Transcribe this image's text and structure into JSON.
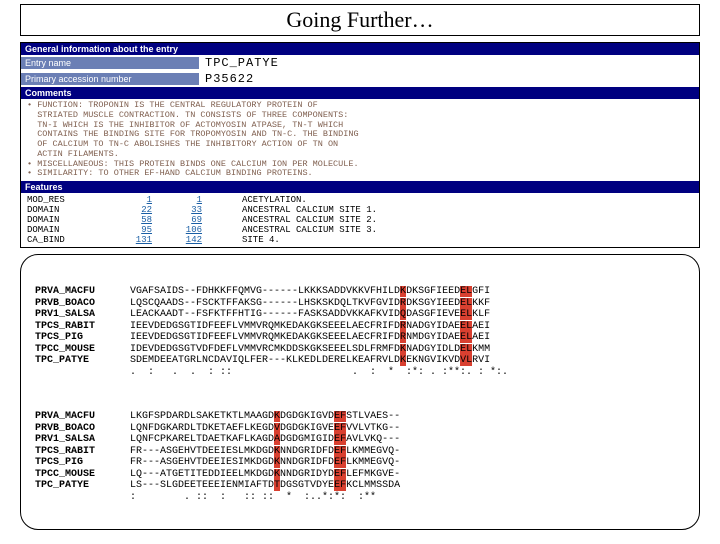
{
  "title": "Going Further…",
  "db": {
    "general_header": "General information about the entry",
    "entry_label": "Entry name",
    "entry_value": "TPC_PATYE",
    "acc_label": "Primary accession number",
    "acc_value": "P35622",
    "comments_header": "Comments",
    "comments_text": "• FUNCTION: TROPONIN IS THE CENTRAL REGULATORY PROTEIN OF\n  STRIATED MUSCLE CONTRACTION. TN CONSISTS OF THREE COMPONENTS:\n  TN-I WHICH IS THE INHIBITOR OF ACTOMYOSIN ATPASE, TN-T WHICH\n  CONTAINS THE BINDING SITE FOR TROPOMYOSIN AND TN-C. THE BINDING\n  OF CALCIUM TO TN-C ABOLISHES THE INHIBITORY ACTION OF TN ON\n  ACTIN FILAMENTS.\n• MISCELLANEOUS: THIS PROTEIN BINDS ONE CALCIUM ION PER MOLECULE.\n• SIMILARITY: TO OTHER EF-HAND CALCIUM BINDING PROTEINS.",
    "features_header": "Features",
    "features": [
      {
        "key": "MOD_RES",
        "from": "1",
        "to": "1",
        "desc": "ACETYLATION."
      },
      {
        "key": "DOMAIN",
        "from": "22",
        "to": "33",
        "desc": "ANCESTRAL CALCIUM SITE 1."
      },
      {
        "key": "DOMAIN",
        "from": "58",
        "to": "69",
        "desc": "ANCESTRAL CALCIUM SITE 2."
      },
      {
        "key": "DOMAIN",
        "from": "95",
        "to": "106",
        "desc": "ANCESTRAL CALCIUM SITE 3."
      },
      {
        "key": "CA_BIND",
        "from": "131",
        "to": "142",
        "desc": "SITE 4."
      }
    ]
  },
  "alignment": {
    "block1": [
      {
        "label": "PRVA_MACFU",
        "pre": "VGAFSAIDS--FDHKKFFQMVG------LKKKSADDVKKVFHILD",
        "h1": "K",
        "mid1": "DKSGFIEED",
        "h2": "EL",
        "post": "GFI"
      },
      {
        "label": "PRVB_BOACO",
        "pre": "LQSCQAADS--FSCKTFFAKSG------LHSKSKDQLTKVFGVID",
        "h1": "R",
        "mid1": "DKSGYIEED",
        "h2": "EL",
        "post": "KKF"
      },
      {
        "label": "PRV1_SALSA",
        "pre": "LEACKAADT--FSFKTFFHTIG------FASKSADDVKKAFKVID",
        "h1": "Q",
        "mid1": "DASGFIEVE",
        "h2": "EL",
        "post": "KLF"
      },
      {
        "label": "TPCS_RABIT",
        "pre": "IEEVDEDGSGTIDFEEFLVMMVRQMKEDAKGKSEEELAECFRIFD",
        "h1": "R",
        "mid1": "NADGYIDAE",
        "h2": "EL",
        "post": "AEI"
      },
      {
        "label": "TPCS_PIG",
        "pre": "IEEVDEDGSGTIDFEEFLVMMVRQMKEDAKGKSEEELAECFRIFD",
        "h1": "R",
        "mid1": "NMDGYIDAE",
        "h2": "EL",
        "post": "AEI"
      },
      {
        "label": "TPCC_MOUSE",
        "pre": "IDEVDEDGSGTVDFDEFLVMMVRCMKDDSKGKSEEELSDLFRMFD",
        "h1": "K",
        "mid1": "NADGYIDLD",
        "h2": "EL",
        "post": "KMM"
      },
      {
        "label": "TPC_PATYE",
        "pre": "SDEMDEEATGRLNCDAVIQLFER---KLKEDLDERELKEAFRVLD",
        "h1": "K",
        "mid1": "EKNGVIKVD",
        "h2": "VL",
        "post": "RVI"
      }
    ],
    "cons1": ".  :   .  .  : ::                    .  :  *  :*: . :**:. : *:.",
    "block2": [
      {
        "label": "PRVA_MACFU",
        "pre": "LKGFSPDARDLSAKETKTLMAAGD",
        "h1": "K",
        "mid1": "DGDGKIGVD",
        "h2": "EF",
        "post": "STLVAES--"
      },
      {
        "label": "PRVB_BOACO",
        "pre": "LQNFDGKARDLTDKETAEFLKEGD",
        "h1": "V",
        "mid1": "DGDGKIGVE",
        "h2": "EF",
        "post": "VVLVTKG--"
      },
      {
        "label": "PRV1_SALSA",
        "pre": "LQNFCPKARELTDAETKAFLKAGD",
        "h1": "A",
        "mid1": "DGDGMIGID",
        "h2": "EF",
        "post": "AVLVKQ---"
      },
      {
        "label": "TPCS_RABIT",
        "pre": "FR---ASGEHVTDEEIESLMKDGD",
        "h1": "K",
        "mid1": "NNDGRIDFD",
        "h2": "EF",
        "post": "LKMMEGVQ-"
      },
      {
        "label": "TPCS_PIG",
        "pre": "FR---ASGEHVTDEEIESIMKDGD",
        "h1": "K",
        "mid1": "NNDGRIDFD",
        "h2": "EF",
        "post": "LKMMEGVQ-"
      },
      {
        "label": "TPCC_MOUSE",
        "pre": "LQ---ATGETITEDDIEELMKDGD",
        "h1": "K",
        "mid1": "NNDGRIDYD",
        "h2": "EF",
        "post": "LEFMKGVE-"
      },
      {
        "label": "TPC_PATYE",
        "pre": "LS---SLGDEETEEEIENMIAFTD",
        "h1": "T",
        "mid1": "DGSGTVDYE",
        "h2": "EF",
        "post": "KCLMMSSDA"
      }
    ],
    "cons2": ":        . ::  :   :: ::  *  :..*:*:  :**"
  }
}
